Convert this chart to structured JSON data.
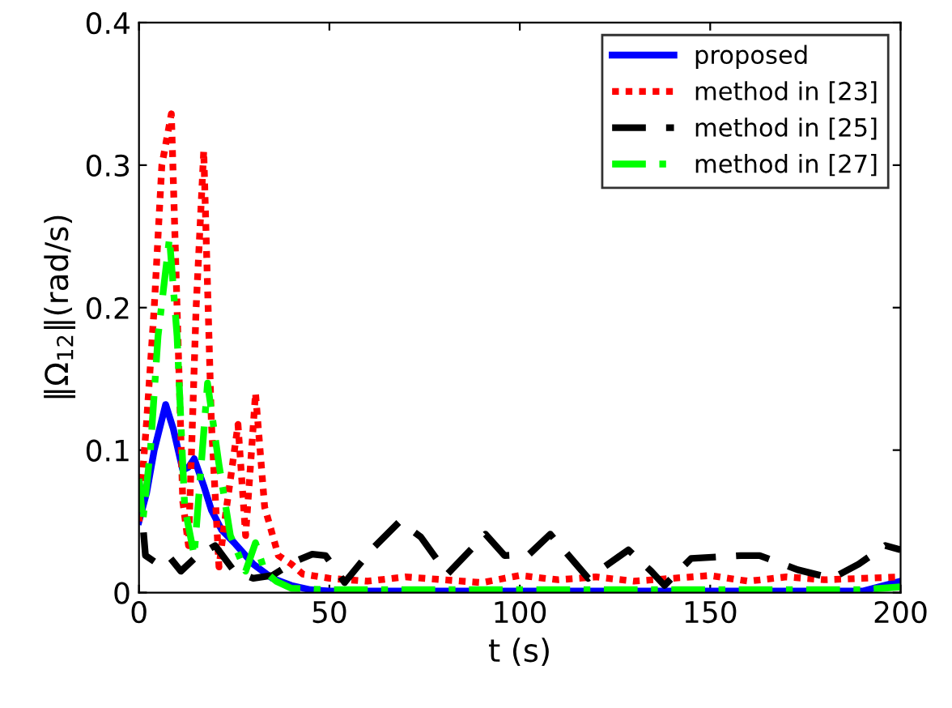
{
  "chart_data": {
    "type": "line",
    "xlabel": "t (s)",
    "ylabel": "‖Ω$_{12}$‖(rad/s)",
    "xlim": [
      0,
      200
    ],
    "ylim": [
      0,
      0.4
    ],
    "xticks": [
      0,
      50,
      100,
      150,
      200
    ],
    "yticks": [
      0,
      0.1,
      0.2,
      0.3,
      0.4
    ],
    "grid": false,
    "legend": "top right",
    "marker": "none",
    "series": [
      {
        "name": "proposed",
        "color": "#0000ff",
        "line_style": "solid",
        "x": [
          0,
          2,
          4,
          7,
          9,
          11.5,
          13,
          14.5,
          17,
          19,
          21.7,
          25,
          30,
          35,
          40,
          45,
          50,
          100,
          150,
          190,
          200
        ],
        "values": [
          0.05,
          0.07,
          0.1,
          0.132,
          0.115,
          0.086,
          0.088,
          0.094,
          0.075,
          0.058,
          0.044,
          0.035,
          0.02,
          0.01,
          0.005,
          0.002,
          0.001,
          0.001,
          0.001,
          0.001,
          0.008
        ]
      },
      {
        "name": "method in [23]",
        "color": "#ff0000",
        "line_style": "dotted",
        "x": [
          0,
          2,
          4,
          6,
          8.5,
          10,
          11.5,
          13,
          15,
          17,
          19,
          21,
          23,
          26,
          28,
          30.6,
          33,
          36.6,
          40,
          43,
          50,
          60,
          70,
          80,
          90,
          100,
          110,
          120,
          130,
          140,
          150,
          160,
          170,
          180,
          190,
          200
        ],
        "values": [
          0.05,
          0.12,
          0.2,
          0.3,
          0.336,
          0.2,
          0.064,
          0.033,
          0.2,
          0.31,
          0.12,
          0.018,
          0.06,
          0.118,
          0.04,
          0.14,
          0.06,
          0.026,
          0.02,
          0.013,
          0.01,
          0.008,
          0.011,
          0.009,
          0.007,
          0.012,
          0.009,
          0.011,
          0.008,
          0.01,
          0.012,
          0.008,
          0.011,
          0.009,
          0.01,
          0.011
        ]
      },
      {
        "name": "method in [25]",
        "color": "#000000",
        "line_style": "dashed",
        "x": [
          0,
          1.7,
          5,
          8,
          11,
          15,
          20,
          25,
          30,
          35,
          41,
          45.5,
          49,
          54,
          61,
          68.5,
          74,
          81,
          91,
          96,
          102.5,
          108,
          118,
          128.5,
          134.5,
          138,
          145,
          158,
          163,
          173,
          182,
          189,
          196,
          200
        ],
        "values": [
          0.08,
          0.026,
          0.02,
          0.025,
          0.015,
          0.025,
          0.033,
          0.015,
          0.01,
          0.012,
          0.022,
          0.027,
          0.026,
          0.007,
          0.03,
          0.05,
          0.039,
          0.013,
          0.041,
          0.026,
          0.027,
          0.041,
          0.01,
          0.03,
          0.015,
          0.005,
          0.024,
          0.026,
          0.026,
          0.016,
          0.01,
          0.02,
          0.033,
          0.03
        ]
      },
      {
        "name": "method in [27]",
        "color": "#00ff00",
        "line_style": "dashdot",
        "x": [
          0,
          1,
          3,
          5,
          8,
          10,
          12,
          14.5,
          18,
          21,
          24,
          28,
          30.6,
          33,
          36,
          40,
          50,
          100,
          150,
          190,
          200
        ],
        "values": [
          0.08,
          0.05,
          0.1,
          0.18,
          0.249,
          0.18,
          0.06,
          0.026,
          0.147,
          0.09,
          0.04,
          0.015,
          0.035,
          0.015,
          0.008,
          0.003,
          0.002,
          0.002,
          0.002,
          0.002,
          0.004
        ]
      }
    ]
  }
}
